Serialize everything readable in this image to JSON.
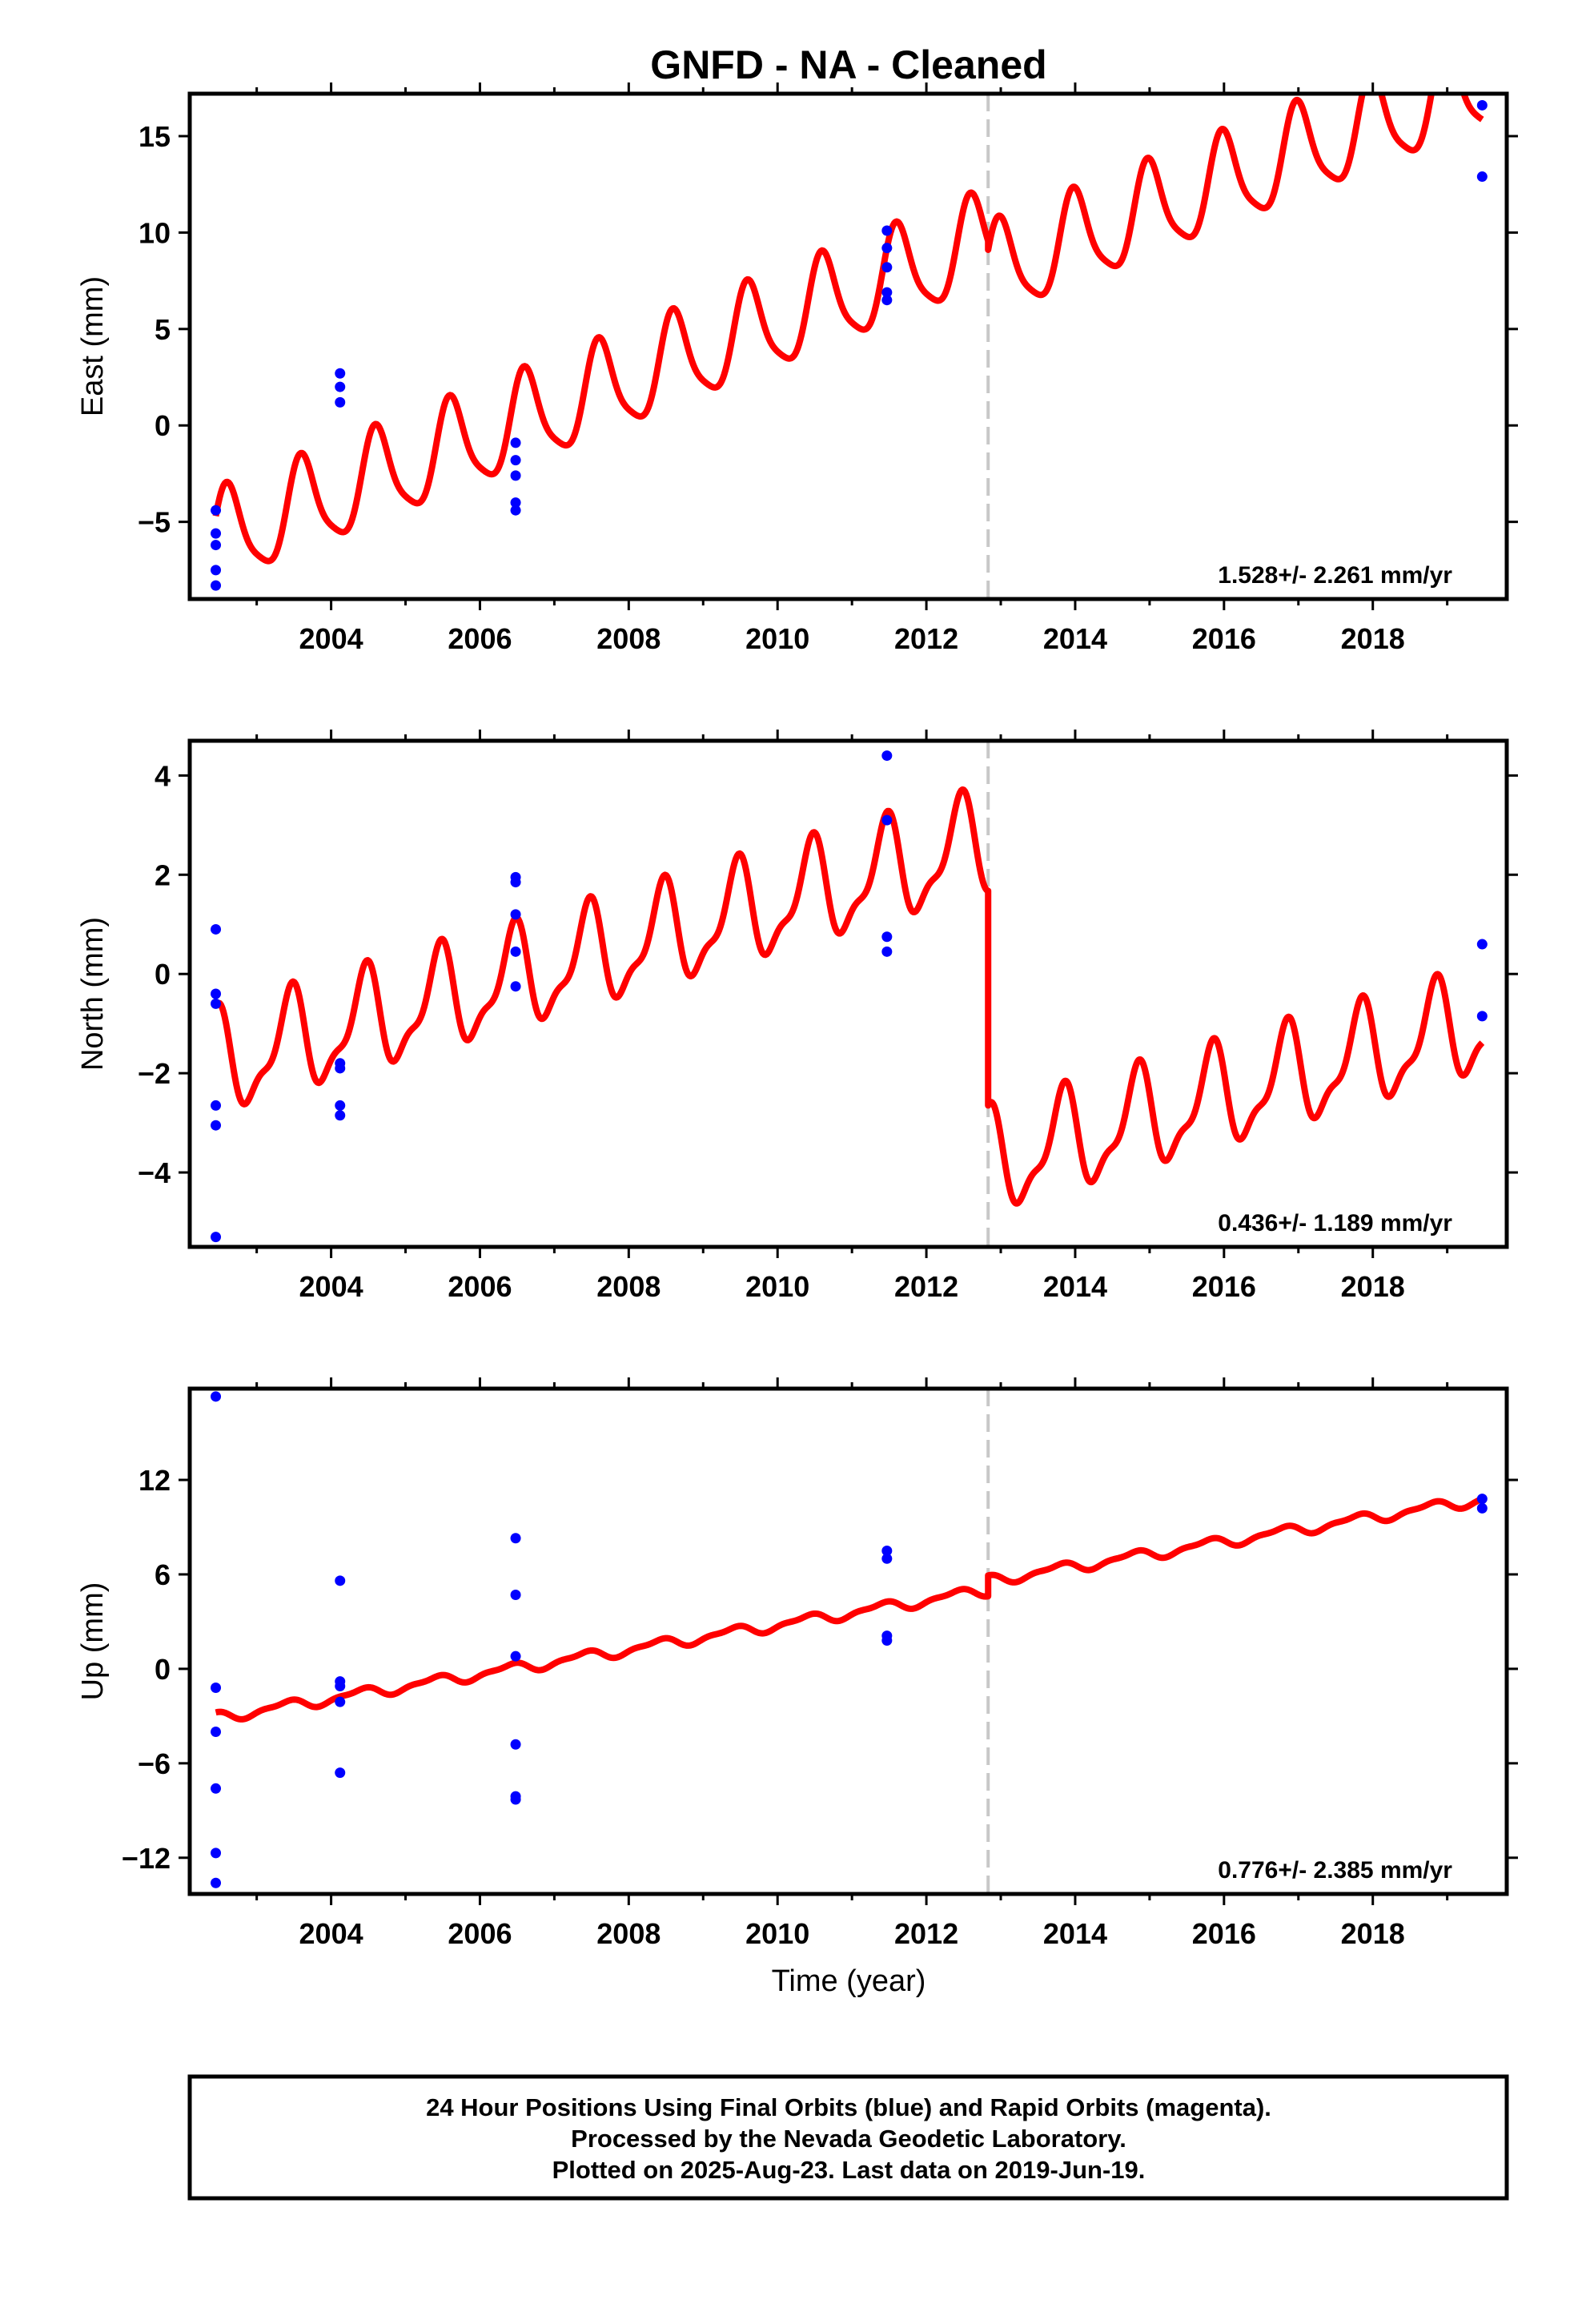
{
  "title": "GNFD  - NA - Cleaned",
  "xlabel": "Time (year)",
  "footer": {
    "line1": "24 Hour Positions Using Final Orbits (blue) and Rapid Orbits (magenta).",
    "line2": "Processed by the Nevada Geodetic Laboratory.",
    "line3": "Plotted on 2025-Aug-23. Last data on 2019-Jun-19."
  },
  "colors": {
    "model": "#ff0000",
    "final_orbit_points": "#0000ff",
    "equipment_change_line": "#c8c8c8",
    "frame": "#000000"
  },
  "chart_data": [
    {
      "type": "scatter+line",
      "ylabel": "East (mm)",
      "xlim": [
        2002.1,
        2019.8
      ],
      "ylim": [
        -9,
        17.2
      ],
      "xticks": [
        2004,
        2006,
        2008,
        2010,
        2012,
        2014,
        2016,
        2018
      ],
      "yticks": [
        -5,
        0,
        5,
        10,
        15
      ],
      "ytick_labels": [
        "−5",
        "0",
        "5",
        "10",
        "15"
      ],
      "grid": false,
      "rate_text": "1.528+/- 2.261 mm/yr",
      "break_year": 2012.83,
      "model": {
        "start": 2002.45,
        "end": 2019.47,
        "segments": [
          {
            "t0": 2002.45,
            "t1": 2012.83,
            "base": -6.0,
            "rate": 1.5,
            "t_ref": 2002.45,
            "amp_annual": 2.4,
            "phase_annual": 0.55,
            "amp_semi": 0.5,
            "phase_semi": 0.1
          },
          {
            "t0": 2012.83,
            "t1": 2019.47,
            "base": 7.8,
            "rate": 1.5,
            "t_ref": 2012.83,
            "amp_annual": 2.4,
            "phase_annual": 0.55,
            "amp_semi": 0.5,
            "phase_semi": 0.1
          }
        ]
      },
      "points": [
        {
          "x": 2002.45,
          "y": -4.4
        },
        {
          "x": 2002.45,
          "y": -5.6
        },
        {
          "x": 2002.45,
          "y": -6.2
        },
        {
          "x": 2002.45,
          "y": -7.5
        },
        {
          "x": 2002.45,
          "y": -8.3
        },
        {
          "x": 2004.12,
          "y": 2.7
        },
        {
          "x": 2004.12,
          "y": 2.0
        },
        {
          "x": 2004.12,
          "y": 1.2
        },
        {
          "x": 2006.48,
          "y": -0.9
        },
        {
          "x": 2006.48,
          "y": -1.8
        },
        {
          "x": 2006.48,
          "y": -2.6
        },
        {
          "x": 2006.48,
          "y": -4.0
        },
        {
          "x": 2006.48,
          "y": -4.4
        },
        {
          "x": 2011.47,
          "y": 10.1
        },
        {
          "x": 2011.47,
          "y": 9.2
        },
        {
          "x": 2011.47,
          "y": 8.2
        },
        {
          "x": 2011.47,
          "y": 6.9
        },
        {
          "x": 2011.47,
          "y": 6.5
        },
        {
          "x": 2019.47,
          "y": 16.6
        },
        {
          "x": 2019.47,
          "y": 12.9
        }
      ]
    },
    {
      "type": "scatter+line",
      "ylabel": "North (mm)",
      "xlim": [
        2002.1,
        2019.8
      ],
      "ylim": [
        -5.5,
        4.7
      ],
      "xticks": [
        2004,
        2006,
        2008,
        2010,
        2012,
        2014,
        2016,
        2018
      ],
      "yticks": [
        -4,
        -2,
        0,
        2,
        4
      ],
      "ytick_labels": [
        "−4",
        "−2",
        "0",
        "2",
        "4"
      ],
      "grid": false,
      "rate_text": "0.436+/- 1.189 mm/yr",
      "break_year": 2012.83,
      "model": {
        "start": 2002.45,
        "end": 2019.47,
        "segments": [
          {
            "t0": 2002.45,
            "t1": 2012.83,
            "base": -1.85,
            "rate": 0.43,
            "t_ref": 2002.45,
            "amp_annual": 0.95,
            "phase_annual": 1.6,
            "amp_semi": 0.35,
            "phase_semi": 0.8
          },
          {
            "t0": 2012.83,
            "t1": 2019.47,
            "base": -3.85,
            "rate": 0.43,
            "t_ref": 2012.83,
            "amp_annual": 0.95,
            "phase_annual": 1.6,
            "amp_semi": 0.35,
            "phase_semi": 0.8
          }
        ]
      },
      "points": [
        {
          "x": 2002.45,
          "y": 0.9
        },
        {
          "x": 2002.45,
          "y": -0.4
        },
        {
          "x": 2002.45,
          "y": -0.6
        },
        {
          "x": 2002.45,
          "y": -2.65
        },
        {
          "x": 2002.45,
          "y": -3.05
        },
        {
          "x": 2002.45,
          "y": -5.3
        },
        {
          "x": 2004.12,
          "y": -1.8
        },
        {
          "x": 2004.12,
          "y": -1.9
        },
        {
          "x": 2004.12,
          "y": -2.65
        },
        {
          "x": 2004.12,
          "y": -2.85
        },
        {
          "x": 2006.48,
          "y": 1.95
        },
        {
          "x": 2006.48,
          "y": 1.85
        },
        {
          "x": 2006.48,
          "y": 1.2
        },
        {
          "x": 2006.48,
          "y": 0.45
        },
        {
          "x": 2006.48,
          "y": -0.25
        },
        {
          "x": 2011.47,
          "y": 4.4
        },
        {
          "x": 2011.47,
          "y": 3.1
        },
        {
          "x": 2011.47,
          "y": 0.75
        },
        {
          "x": 2011.47,
          "y": 0.45
        },
        {
          "x": 2019.47,
          "y": 0.6
        },
        {
          "x": 2019.47,
          "y": -0.85
        }
      ]
    },
    {
      "type": "scatter+line",
      "ylabel": "Up (mm)",
      "xlim": [
        2002.1,
        2019.8
      ],
      "ylim": [
        -14.3,
        17.8
      ],
      "xticks": [
        2004,
        2006,
        2008,
        2010,
        2012,
        2014,
        2016,
        2018
      ],
      "yticks": [
        -12,
        -6,
        0,
        6,
        12
      ],
      "ytick_labels": [
        "−12",
        "−6",
        "0",
        "6",
        "12"
      ],
      "grid": false,
      "rate_text": "0.776+/- 2.385 mm/yr",
      "break_year": 2012.83,
      "model": {
        "start": 2002.45,
        "end": 2019.47,
        "segments": [
          {
            "t0": 2002.45,
            "t1": 2012.83,
            "base": -3.1,
            "rate": 0.78,
            "t_ref": 2002.45,
            "amp_annual": 0.3,
            "phase_annual": 2.0,
            "amp_semi": 0.12,
            "phase_semi": 0.5
          },
          {
            "t0": 2012.83,
            "t1": 2019.47,
            "base": 5.6,
            "rate": 0.78,
            "t_ref": 2012.83,
            "amp_annual": 0.3,
            "phase_annual": 2.0,
            "amp_semi": 0.12,
            "phase_semi": 0.5
          }
        ]
      },
      "points": [
        {
          "x": 2002.45,
          "y": 17.3
        },
        {
          "x": 2002.45,
          "y": -1.2
        },
        {
          "x": 2002.45,
          "y": -4.0
        },
        {
          "x": 2002.45,
          "y": -7.6
        },
        {
          "x": 2002.45,
          "y": -11.7
        },
        {
          "x": 2002.45,
          "y": -13.6
        },
        {
          "x": 2004.12,
          "y": 5.6
        },
        {
          "x": 2004.12,
          "y": -0.8
        },
        {
          "x": 2004.12,
          "y": -1.1
        },
        {
          "x": 2004.12,
          "y": -2.1
        },
        {
          "x": 2004.12,
          "y": -6.6
        },
        {
          "x": 2006.48,
          "y": 8.3
        },
        {
          "x": 2006.48,
          "y": 4.7
        },
        {
          "x": 2006.48,
          "y": 0.8
        },
        {
          "x": 2006.48,
          "y": -4.8
        },
        {
          "x": 2006.48,
          "y": -8.1
        },
        {
          "x": 2006.48,
          "y": -8.3
        },
        {
          "x": 2011.47,
          "y": 7.5
        },
        {
          "x": 2011.47,
          "y": 7.0
        },
        {
          "x": 2011.47,
          "y": 2.1
        },
        {
          "x": 2011.47,
          "y": 1.8
        },
        {
          "x": 2019.47,
          "y": 10.8
        },
        {
          "x": 2019.47,
          "y": 10.2
        }
      ]
    }
  ]
}
